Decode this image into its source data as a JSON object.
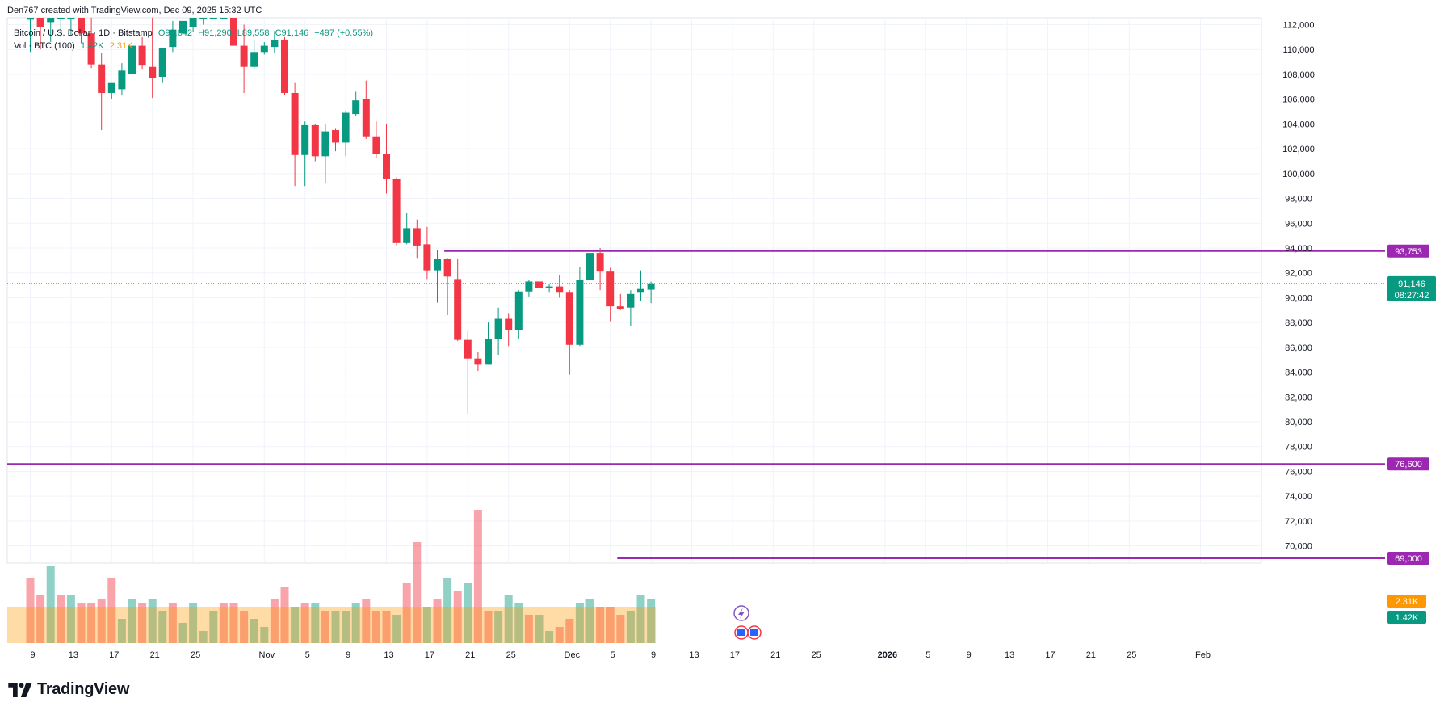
{
  "header": {
    "created_by": "Den767 created with TradingView.com, Dec 09, 2025 15:32 UTC"
  },
  "legend": {
    "symbol": "Bitcoin / U.S. Dollar · 1D · Bitstamp",
    "open": "O90,642",
    "high": "H91,290",
    "low": "L89,558",
    "close": "C91,146",
    "change": "+497 (+0.55%)",
    "volume_label": "Vol · BTC (100)",
    "volume_value": "1.42K",
    "volume_ma": "2.31K"
  },
  "brand": {
    "name": "TradingView"
  },
  "colors": {
    "up": "#089981",
    "down": "#f23645",
    "level_line": "#9c27b0",
    "price_line": "#089981",
    "vol_ma": "#ff9800"
  },
  "chart_data": {
    "type": "candlestick",
    "y_axis": {
      "min": 68000,
      "max": 113000,
      "ticks": [
        112000,
        110000,
        108000,
        106000,
        104000,
        102000,
        100000,
        98000,
        96000,
        94000,
        92000,
        90000,
        88000,
        86000,
        84000,
        82000,
        80000,
        78000,
        76000,
        74000,
        72000,
        70000
      ]
    },
    "y_tick_labels": [
      "112,000",
      "110,000",
      "108,000",
      "106,000",
      "104,000",
      "102,000",
      "100,000",
      "98,000",
      "96,000",
      "94,000",
      "92,000",
      "90,000",
      "88,000",
      "86,000",
      "84,000",
      "82,000",
      "80,000",
      "78,000",
      "76,000",
      "74,000",
      "72,000",
      "70,000"
    ],
    "x_ticks": [
      {
        "label": "9",
        "day": 0
      },
      {
        "label": "13",
        "day": 4
      },
      {
        "label": "17",
        "day": 8
      },
      {
        "label": "21",
        "day": 12
      },
      {
        "label": "25",
        "day": 16
      },
      {
        "label": "Nov",
        "day": 23
      },
      {
        "label": "5",
        "day": 27
      },
      {
        "label": "9",
        "day": 31
      },
      {
        "label": "13",
        "day": 35
      },
      {
        "label": "17",
        "day": 39
      },
      {
        "label": "21",
        "day": 43
      },
      {
        "label": "25",
        "day": 47
      },
      {
        "label": "Dec",
        "day": 53
      },
      {
        "label": "5",
        "day": 57
      },
      {
        "label": "9",
        "day": 61
      },
      {
        "label": "13",
        "day": 65
      },
      {
        "label": "17",
        "day": 69
      },
      {
        "label": "21",
        "day": 73
      },
      {
        "label": "25",
        "day": 77
      },
      {
        "label": "2026",
        "day": 84
      },
      {
        "label": "5",
        "day": 88
      },
      {
        "label": "9",
        "day": 92
      },
      {
        "label": "13",
        "day": 96
      },
      {
        "label": "17",
        "day": 100
      },
      {
        "label": "21",
        "day": 104
      },
      {
        "label": "25",
        "day": 108
      },
      {
        "label": "Feb",
        "day": 115
      }
    ],
    "candles": [
      {
        "date": "Oct 9",
        "o": 112400,
        "h": 113000,
        "l": 109800,
        "c": 113000
      },
      {
        "date": "Oct 10",
        "o": 112800,
        "h": 113000,
        "l": 110000,
        "c": 111800
      },
      {
        "date": "Oct 11",
        "o": 112200,
        "h": 113000,
        "l": 110600,
        "c": 112800
      },
      {
        "date": "Oct 12",
        "o": 113000,
        "h": 113000,
        "l": 111000,
        "c": 113000
      },
      {
        "date": "Oct 13",
        "o": 113000,
        "h": 113000,
        "l": 111200,
        "c": 113000
      },
      {
        "date": "Oct 14",
        "o": 113000,
        "h": 113000,
        "l": 110500,
        "c": 111300
      },
      {
        "date": "Oct 15",
        "o": 111300,
        "h": 113000,
        "l": 108500,
        "c": 108800
      },
      {
        "date": "Oct 16",
        "o": 108800,
        "h": 109700,
        "l": 103500,
        "c": 106500
      },
      {
        "date": "Oct 17",
        "o": 106500,
        "h": 107200,
        "l": 106000,
        "c": 107300
      },
      {
        "date": "Oct 18",
        "o": 106800,
        "h": 108900,
        "l": 106300,
        "c": 108300
      },
      {
        "date": "Oct 19",
        "o": 108000,
        "h": 111000,
        "l": 107700,
        "c": 110300
      },
      {
        "date": "Oct 20",
        "o": 110300,
        "h": 111000,
        "l": 108400,
        "c": 108700
      },
      {
        "date": "Oct 21",
        "o": 108600,
        "h": 113000,
        "l": 106100,
        "c": 107700
      },
      {
        "date": "Oct 22",
        "o": 107800,
        "h": 110000,
        "l": 107300,
        "c": 110100
      },
      {
        "date": "Oct 23",
        "o": 110200,
        "h": 112300,
        "l": 109800,
        "c": 111600
      },
      {
        "date": "Oct 24",
        "o": 111300,
        "h": 112500,
        "l": 110700,
        "c": 112300
      },
      {
        "date": "Oct 25",
        "o": 111800,
        "h": 113000,
        "l": 111400,
        "c": 112800
      },
      {
        "date": "Oct 26",
        "o": 112900,
        "h": 113000,
        "l": 112000,
        "c": 113000
      },
      {
        "date": "Oct 27",
        "o": 113000,
        "h": 113000,
        "l": 113000,
        "c": 113000
      },
      {
        "date": "Oct 28",
        "o": 113000,
        "h": 113000,
        "l": 113000,
        "c": 113000
      },
      {
        "date": "Oct 29",
        "o": 113000,
        "h": 113000,
        "l": 110400,
        "c": 110300
      },
      {
        "date": "Oct 30",
        "o": 110300,
        "h": 112000,
        "l": 106500,
        "c": 108600
      },
      {
        "date": "Oct 31",
        "o": 108600,
        "h": 110700,
        "l": 108400,
        "c": 109800
      },
      {
        "date": "Nov 1",
        "o": 109800,
        "h": 110600,
        "l": 109600,
        "c": 110300
      },
      {
        "date": "Nov 2",
        "o": 110200,
        "h": 111500,
        "l": 109700,
        "c": 110800
      },
      {
        "date": "Nov 3",
        "o": 110800,
        "h": 111000,
        "l": 106300,
        "c": 106500
      },
      {
        "date": "Nov 4",
        "o": 106500,
        "h": 107300,
        "l": 99000,
        "c": 101500
      },
      {
        "date": "Nov 5",
        "o": 101500,
        "h": 104200,
        "l": 99000,
        "c": 103900
      },
      {
        "date": "Nov 6",
        "o": 103900,
        "h": 104000,
        "l": 101000,
        "c": 101400
      },
      {
        "date": "Nov 7",
        "o": 101400,
        "h": 104000,
        "l": 99200,
        "c": 103400
      },
      {
        "date": "Nov 8",
        "o": 103500,
        "h": 103600,
        "l": 101800,
        "c": 102500
      },
      {
        "date": "Nov 9",
        "o": 102500,
        "h": 105000,
        "l": 101400,
        "c": 104900
      },
      {
        "date": "Nov 10",
        "o": 104800,
        "h": 106600,
        "l": 104600,
        "c": 105900
      },
      {
        "date": "Nov 11",
        "o": 106000,
        "h": 107500,
        "l": 102800,
        "c": 103000
      },
      {
        "date": "Nov 12",
        "o": 103000,
        "h": 104200,
        "l": 101300,
        "c": 101600
      },
      {
        "date": "Nov 13",
        "o": 101600,
        "h": 104000,
        "l": 98400,
        "c": 99600
      },
      {
        "date": "Nov 14",
        "o": 99600,
        "h": 99700,
        "l": 94200,
        "c": 94400
      },
      {
        "date": "Nov 15",
        "o": 94400,
        "h": 96800,
        "l": 94300,
        "c": 95600
      },
      {
        "date": "Nov 16",
        "o": 95600,
        "h": 96300,
        "l": 93200,
        "c": 94200
      },
      {
        "date": "Nov 17",
        "o": 94300,
        "h": 95700,
        "l": 91500,
        "c": 92200
      },
      {
        "date": "Nov 18",
        "o": 92200,
        "h": 93800,
        "l": 89600,
        "c": 93100
      },
      {
        "date": "Nov 19",
        "o": 93100,
        "h": 93200,
        "l": 88600,
        "c": 91700
      },
      {
        "date": "Nov 20",
        "o": 91500,
        "h": 93100,
        "l": 86500,
        "c": 86600
      },
      {
        "date": "Nov 21",
        "o": 86600,
        "h": 87300,
        "l": 80600,
        "c": 85100
      },
      {
        "date": "Nov 22",
        "o": 85100,
        "h": 85600,
        "l": 84100,
        "c": 84600
      },
      {
        "date": "Nov 23",
        "o": 84600,
        "h": 88000,
        "l": 84600,
        "c": 86700
      },
      {
        "date": "Nov 24",
        "o": 86700,
        "h": 89200,
        "l": 85400,
        "c": 88300
      },
      {
        "date": "Nov 25",
        "o": 88300,
        "h": 88700,
        "l": 86100,
        "c": 87400
      },
      {
        "date": "Nov 26",
        "o": 87400,
        "h": 90600,
        "l": 86700,
        "c": 90500
      },
      {
        "date": "Nov 27",
        "o": 90500,
        "h": 91400,
        "l": 90100,
        "c": 91300
      },
      {
        "date": "Nov 28",
        "o": 91300,
        "h": 93000,
        "l": 90300,
        "c": 90800
      },
      {
        "date": "Nov 29",
        "o": 90800,
        "h": 91100,
        "l": 90400,
        "c": 90900
      },
      {
        "date": "Nov 30",
        "o": 90900,
        "h": 91800,
        "l": 90000,
        "c": 90400
      },
      {
        "date": "Dec 1",
        "o": 90400,
        "h": 90600,
        "l": 83800,
        "c": 86200
      },
      {
        "date": "Dec 2",
        "o": 86200,
        "h": 92500,
        "l": 86100,
        "c": 91400
      },
      {
        "date": "Dec 3",
        "o": 91400,
        "h": 94100,
        "l": 91300,
        "c": 93600
      },
      {
        "date": "Dec 4",
        "o": 93600,
        "h": 94000,
        "l": 90600,
        "c": 92100
      },
      {
        "date": "Dec 5",
        "o": 92100,
        "h": 92400,
        "l": 88100,
        "c": 89300
      },
      {
        "date": "Dec 6",
        "o": 89300,
        "h": 90300,
        "l": 89000,
        "c": 89100
      },
      {
        "date": "Dec 7",
        "o": 89200,
        "h": 90600,
        "l": 87700,
        "c": 90300
      },
      {
        "date": "Dec 8",
        "o": 90400,
        "h": 92200,
        "l": 89700,
        "c": 90700
      },
      {
        "date": "Dec 9",
        "o": 90642,
        "h": 91290,
        "l": 89558,
        "c": 91146
      }
    ],
    "volume": [
      80,
      60,
      95,
      60,
      60,
      50,
      50,
      55,
      80,
      30,
      55,
      50,
      55,
      40,
      50,
      25,
      50,
      15,
      40,
      50,
      50,
      40,
      30,
      20,
      55,
      70,
      45,
      50,
      50,
      40,
      40,
      40,
      50,
      55,
      40,
      40,
      35,
      75,
      125,
      45,
      55,
      80,
      65,
      75,
      165,
      40,
      40,
      60,
      50,
      35,
      35,
      15,
      20,
      30,
      50,
      55,
      45,
      45,
      35,
      40,
      60,
      55
    ],
    "volume_up": [
      false,
      false,
      true,
      false,
      true,
      false,
      false,
      false,
      false,
      true,
      true,
      false,
      true,
      true,
      false,
      true,
      true,
      true,
      true,
      false,
      false,
      false,
      true,
      true,
      false,
      false,
      true,
      false,
      true,
      false,
      true,
      true,
      true,
      false,
      false,
      false,
      true,
      false,
      false,
      true,
      false,
      true,
      false,
      true,
      false,
      false,
      true,
      true,
      true,
      false,
      true,
      true,
      false,
      false,
      true,
      true,
      false,
      false,
      false,
      true,
      true,
      true
    ],
    "vol_ma_level": 45,
    "levels": [
      {
        "price": 93753,
        "label": "93,753",
        "from_day": 41
      },
      {
        "price": 76600,
        "label": "76,600",
        "from_day": -1
      },
      {
        "price": 69000,
        "label": "69,000",
        "from_day": 58
      }
    ],
    "last_price": {
      "price": 91146,
      "label": "91,146",
      "countdown": "08:27:42"
    },
    "vol_tags": [
      {
        "label": "2.31K",
        "kind": "ma"
      },
      {
        "label": "1.42K",
        "kind": "vol"
      }
    ]
  }
}
